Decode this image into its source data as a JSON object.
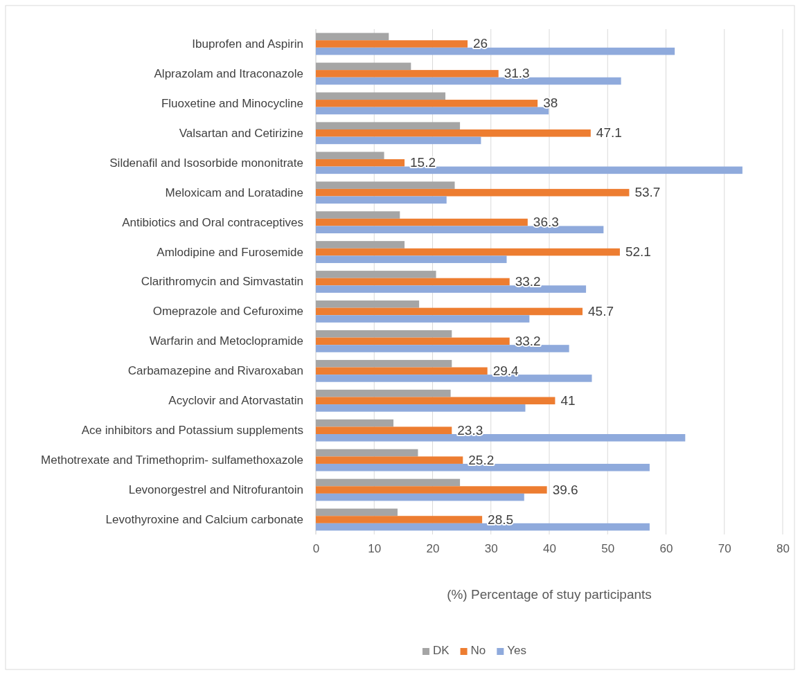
{
  "chart_data": {
    "type": "bar",
    "orientation": "horizontal",
    "xlabel": "(%) Percentage of stuy participants",
    "categories": [
      "Ibuprofen and Aspirin",
      "Alprazolam and Itraconazole",
      "Fluoxetine and Minocycline",
      "Valsartan and Cetirizine",
      "Sildenafil and Isosorbide mononitrate",
      "Meloxicam and Loratadine",
      "Antibiotics and Oral contraceptives",
      "Amlodipine and Furosemide",
      "Clarithromycin and Simvastatin",
      "Omeprazole and Cefuroxime",
      "Warfarin and Metoclopramide",
      "Carbamazepine and Rivaroxaban",
      "Acyclovir and Atorvastatin",
      "Ace inhibitors and Potassium supplements",
      "Methotrexate and Trimethoprim- sulfamethoxazole",
      "Levonorgestrel and Nitrofurantoin",
      "Levothyroxine and Calcium carbonate"
    ],
    "series": [
      {
        "name": "DK",
        "color": "#a5a5a5",
        "values": [
          12.5,
          16.3,
          22.2,
          24.7,
          11.7,
          23.8,
          14.4,
          15.2,
          20.6,
          17.7,
          23.3,
          23.3,
          23.1,
          13.3,
          17.5,
          24.7,
          14.0
        ]
      },
      {
        "name": "No",
        "color": "#ed7d31",
        "values": [
          26,
          31.3,
          38,
          47.1,
          15.2,
          53.7,
          36.3,
          52.1,
          33.2,
          45.7,
          33.2,
          29.4,
          41,
          23.3,
          25.2,
          39.6,
          28.5
        ],
        "value_labels": [
          "26",
          "31.3",
          "38",
          "47.1",
          "15.2",
          "53.7",
          "36.3",
          "52.1",
          "33.2",
          "45.7",
          "33.2",
          "29.4",
          "41",
          "23.3",
          "25.2",
          "39.6",
          "28.5"
        ]
      },
      {
        "name": "Yes",
        "color": "#8faadc",
        "values": [
          61.5,
          52.3,
          39.9,
          28.3,
          73.1,
          22.4,
          49.3,
          32.7,
          46.3,
          36.6,
          43.4,
          47.3,
          35.9,
          63.3,
          57.2,
          35.7,
          57.2
        ]
      }
    ],
    "xlim": [
      0,
      80
    ],
    "xticks": [
      0,
      10,
      20,
      30,
      40,
      50,
      60,
      70,
      80
    ],
    "grid": "x",
    "legend": "bottom"
  }
}
